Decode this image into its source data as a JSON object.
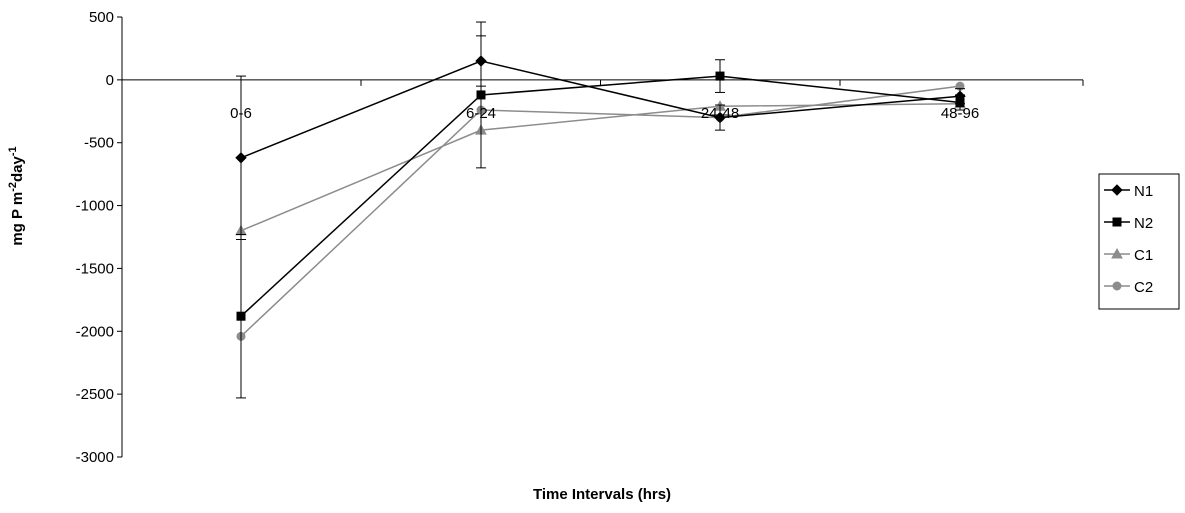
{
  "chart_data": {
    "type": "line",
    "title": "",
    "xlabel": "Time Intervals (hrs)",
    "ylabel": {
      "text_1": "mg P m",
      "sup_1": "-2",
      "text_2": "day",
      "sup_2": "-1"
    },
    "ylim": [
      -3000,
      500
    ],
    "yticks": [
      500,
      0,
      -500,
      -1000,
      -1500,
      -2000,
      -2500,
      -3000
    ],
    "categories": [
      "0-6",
      "6-24",
      "24-48",
      "48-96"
    ],
    "grid": false,
    "legend_position": "right",
    "series": [
      {
        "name": "N1",
        "color": "#000000",
        "marker": "diamond",
        "values": [
          -620,
          150,
          -300,
          -130
        ],
        "errors": [
          650,
          200,
          100,
          60
        ]
      },
      {
        "name": "N2",
        "color": "#000000",
        "marker": "square",
        "values": [
          -1880,
          -120,
          30,
          -180
        ],
        "errors": [
          650,
          580,
          130,
          60
        ]
      },
      {
        "name": "C1",
        "color": "#8c8c8c",
        "marker": "triangle",
        "values": [
          -1200,
          -400,
          -210,
          -190
        ],
        "errors": [
          0,
          0,
          0,
          0
        ]
      },
      {
        "name": "C2",
        "color": "#8c8c8c",
        "marker": "circle",
        "values": [
          -2040,
          -240,
          -300,
          -50
        ],
        "errors": [
          0,
          0,
          0,
          0
        ]
      }
    ]
  }
}
